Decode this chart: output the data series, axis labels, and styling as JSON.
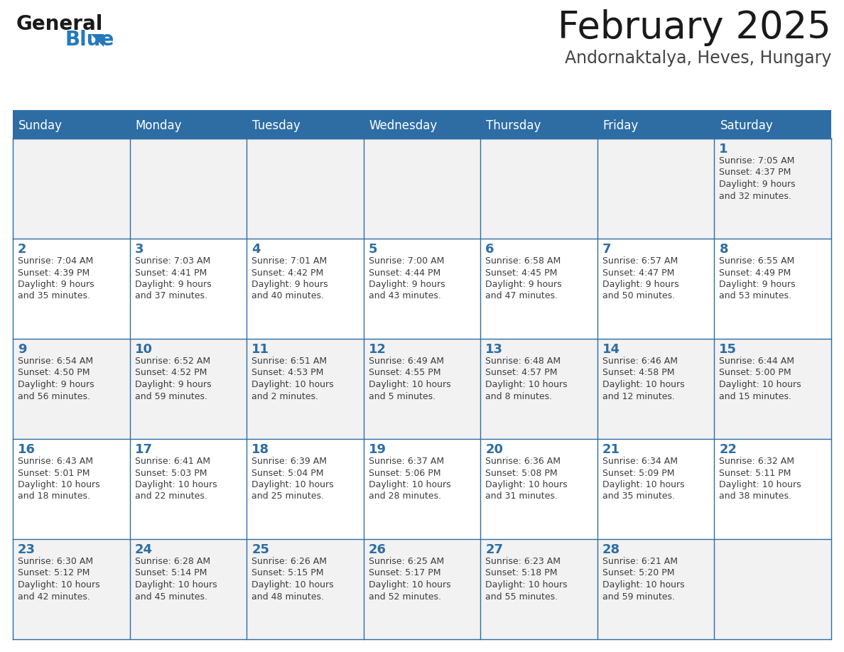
{
  "title": "February 2025",
  "subtitle": "Andornaktalya, Heves, Hungary",
  "days_of_week": [
    "Sunday",
    "Monday",
    "Tuesday",
    "Wednesday",
    "Thursday",
    "Friday",
    "Saturday"
  ],
  "header_bg": "#2E6DA4",
  "header_text": "#FFFFFF",
  "row_bg": [
    "#F2F2F2",
    "#FFFFFF",
    "#F2F2F2",
    "#FFFFFF",
    "#F2F2F2"
  ],
  "day_number_color": "#2E6DA4",
  "text_color": "#3D3D3D",
  "border_color": "#2E6DA4",
  "calendar_data": [
    [
      {
        "day": null,
        "info": ""
      },
      {
        "day": null,
        "info": ""
      },
      {
        "day": null,
        "info": ""
      },
      {
        "day": null,
        "info": ""
      },
      {
        "day": null,
        "info": ""
      },
      {
        "day": null,
        "info": ""
      },
      {
        "day": 1,
        "info": "Sunrise: 7:05 AM\nSunset: 4:37 PM\nDaylight: 9 hours\nand 32 minutes."
      }
    ],
    [
      {
        "day": 2,
        "info": "Sunrise: 7:04 AM\nSunset: 4:39 PM\nDaylight: 9 hours\nand 35 minutes."
      },
      {
        "day": 3,
        "info": "Sunrise: 7:03 AM\nSunset: 4:41 PM\nDaylight: 9 hours\nand 37 minutes."
      },
      {
        "day": 4,
        "info": "Sunrise: 7:01 AM\nSunset: 4:42 PM\nDaylight: 9 hours\nand 40 minutes."
      },
      {
        "day": 5,
        "info": "Sunrise: 7:00 AM\nSunset: 4:44 PM\nDaylight: 9 hours\nand 43 minutes."
      },
      {
        "day": 6,
        "info": "Sunrise: 6:58 AM\nSunset: 4:45 PM\nDaylight: 9 hours\nand 47 minutes."
      },
      {
        "day": 7,
        "info": "Sunrise: 6:57 AM\nSunset: 4:47 PM\nDaylight: 9 hours\nand 50 minutes."
      },
      {
        "day": 8,
        "info": "Sunrise: 6:55 AM\nSunset: 4:49 PM\nDaylight: 9 hours\nand 53 minutes."
      }
    ],
    [
      {
        "day": 9,
        "info": "Sunrise: 6:54 AM\nSunset: 4:50 PM\nDaylight: 9 hours\nand 56 minutes."
      },
      {
        "day": 10,
        "info": "Sunrise: 6:52 AM\nSunset: 4:52 PM\nDaylight: 9 hours\nand 59 minutes."
      },
      {
        "day": 11,
        "info": "Sunrise: 6:51 AM\nSunset: 4:53 PM\nDaylight: 10 hours\nand 2 minutes."
      },
      {
        "day": 12,
        "info": "Sunrise: 6:49 AM\nSunset: 4:55 PM\nDaylight: 10 hours\nand 5 minutes."
      },
      {
        "day": 13,
        "info": "Sunrise: 6:48 AM\nSunset: 4:57 PM\nDaylight: 10 hours\nand 8 minutes."
      },
      {
        "day": 14,
        "info": "Sunrise: 6:46 AM\nSunset: 4:58 PM\nDaylight: 10 hours\nand 12 minutes."
      },
      {
        "day": 15,
        "info": "Sunrise: 6:44 AM\nSunset: 5:00 PM\nDaylight: 10 hours\nand 15 minutes."
      }
    ],
    [
      {
        "day": 16,
        "info": "Sunrise: 6:43 AM\nSunset: 5:01 PM\nDaylight: 10 hours\nand 18 minutes."
      },
      {
        "day": 17,
        "info": "Sunrise: 6:41 AM\nSunset: 5:03 PM\nDaylight: 10 hours\nand 22 minutes."
      },
      {
        "day": 18,
        "info": "Sunrise: 6:39 AM\nSunset: 5:04 PM\nDaylight: 10 hours\nand 25 minutes."
      },
      {
        "day": 19,
        "info": "Sunrise: 6:37 AM\nSunset: 5:06 PM\nDaylight: 10 hours\nand 28 minutes."
      },
      {
        "day": 20,
        "info": "Sunrise: 6:36 AM\nSunset: 5:08 PM\nDaylight: 10 hours\nand 31 minutes."
      },
      {
        "day": 21,
        "info": "Sunrise: 6:34 AM\nSunset: 5:09 PM\nDaylight: 10 hours\nand 35 minutes."
      },
      {
        "day": 22,
        "info": "Sunrise: 6:32 AM\nSunset: 5:11 PM\nDaylight: 10 hours\nand 38 minutes."
      }
    ],
    [
      {
        "day": 23,
        "info": "Sunrise: 6:30 AM\nSunset: 5:12 PM\nDaylight: 10 hours\nand 42 minutes."
      },
      {
        "day": 24,
        "info": "Sunrise: 6:28 AM\nSunset: 5:14 PM\nDaylight: 10 hours\nand 45 minutes."
      },
      {
        "day": 25,
        "info": "Sunrise: 6:26 AM\nSunset: 5:15 PM\nDaylight: 10 hours\nand 48 minutes."
      },
      {
        "day": 26,
        "info": "Sunrise: 6:25 AM\nSunset: 5:17 PM\nDaylight: 10 hours\nand 52 minutes."
      },
      {
        "day": 27,
        "info": "Sunrise: 6:23 AM\nSunset: 5:18 PM\nDaylight: 10 hours\nand 55 minutes."
      },
      {
        "day": 28,
        "info": "Sunrise: 6:21 AM\nSunset: 5:20 PM\nDaylight: 10 hours\nand 59 minutes."
      },
      {
        "day": null,
        "info": ""
      }
    ]
  ],
  "logo_general_color": "#1a1a1a",
  "logo_blue_color": "#2479BD",
  "title_fontsize": 38,
  "subtitle_fontsize": 17,
  "header_fontsize": 12,
  "day_number_fontsize": 13,
  "cell_text_fontsize": 9
}
